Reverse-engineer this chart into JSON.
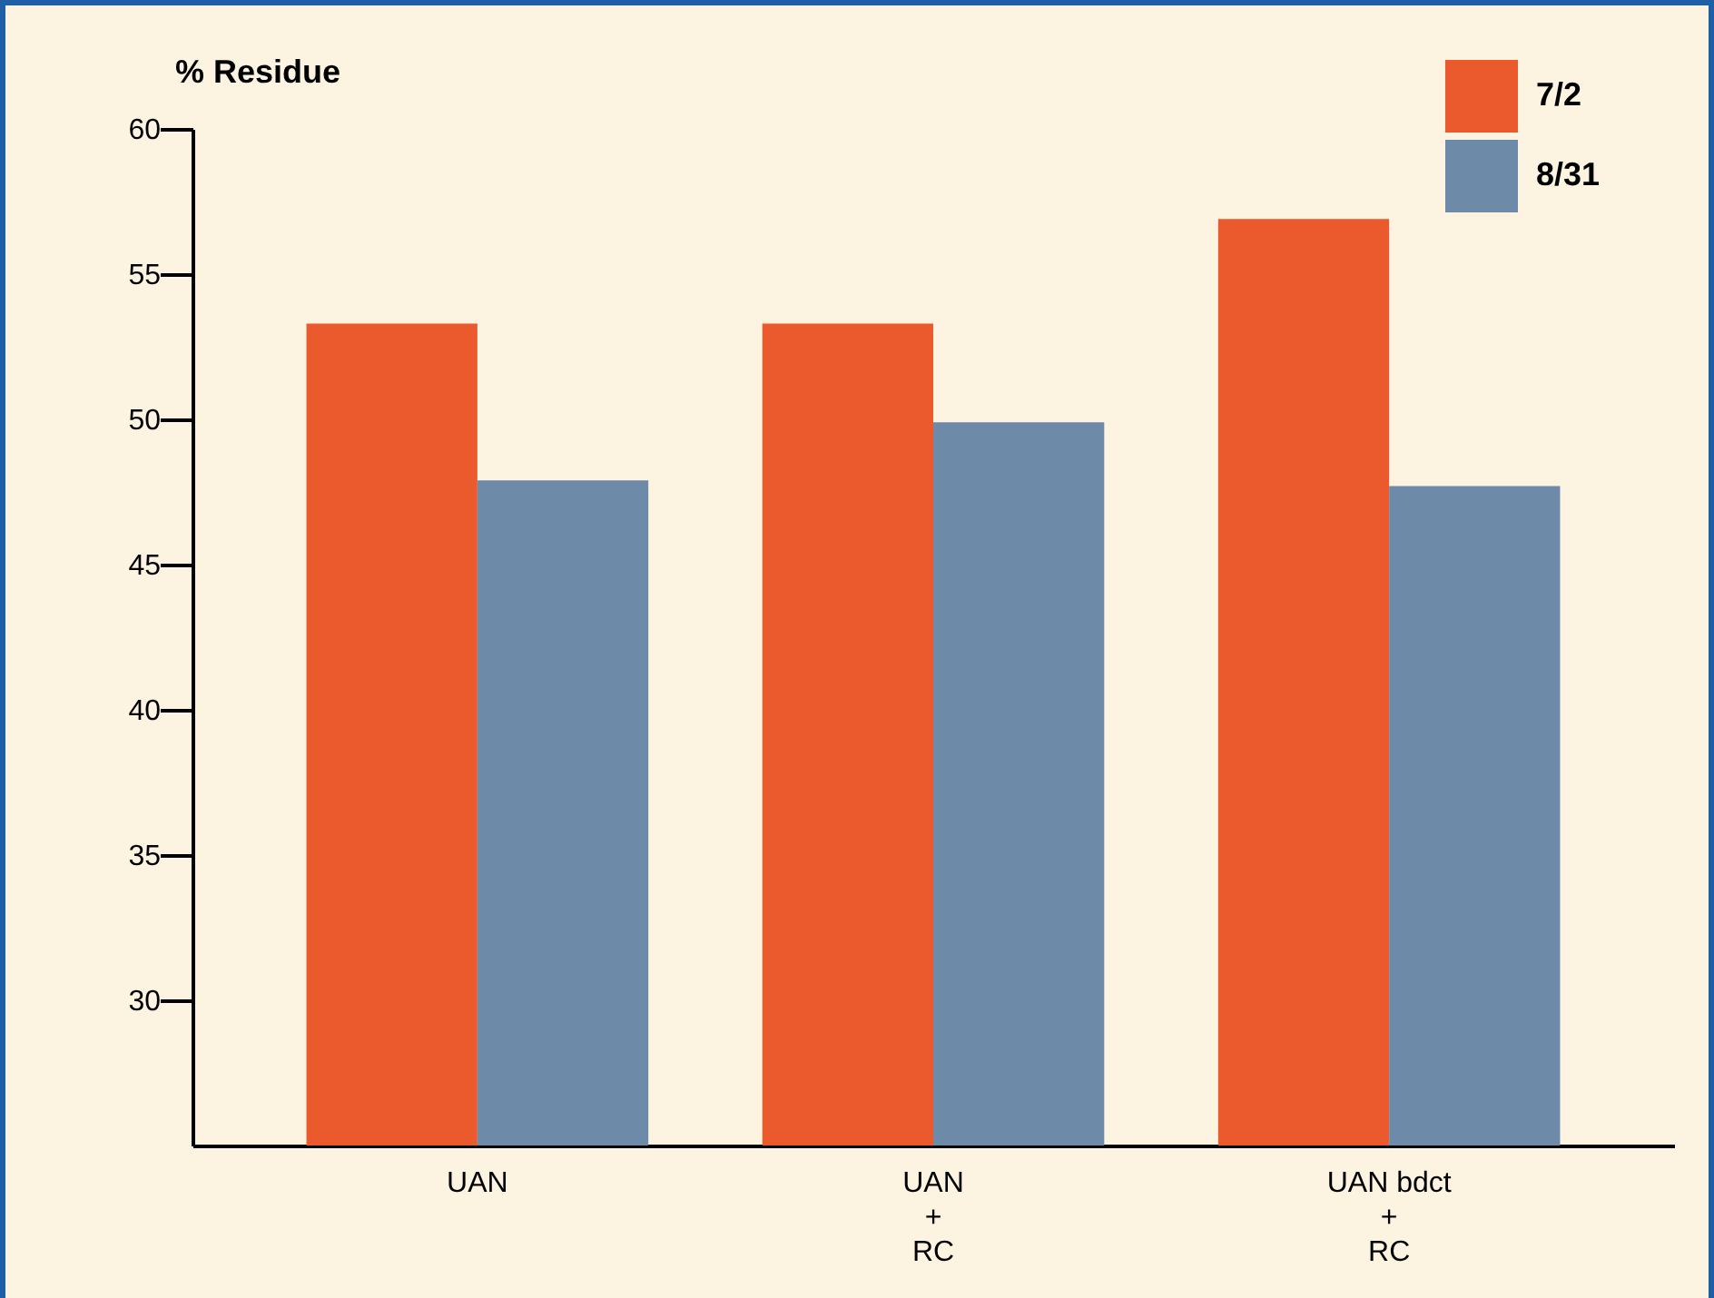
{
  "chart_data": {
    "type": "bar",
    "ylabel": "% Residue",
    "categories": [
      "UAN",
      "UAN\n+\nRC",
      "UAN bdct\n+\nRC"
    ],
    "series": [
      {
        "name": "7/2",
        "color": "#ea5a2c",
        "values": [
          53.3,
          53.3,
          56.9
        ]
      },
      {
        "name": "8/31",
        "color": "#6d8aa8",
        "values": [
          47.9,
          49.9,
          47.7
        ]
      }
    ],
    "ylim": [
      25,
      60
    ],
    "yticks": [
      30,
      35,
      40,
      45,
      50,
      55,
      60
    ],
    "grid": false,
    "legend": "top right"
  }
}
